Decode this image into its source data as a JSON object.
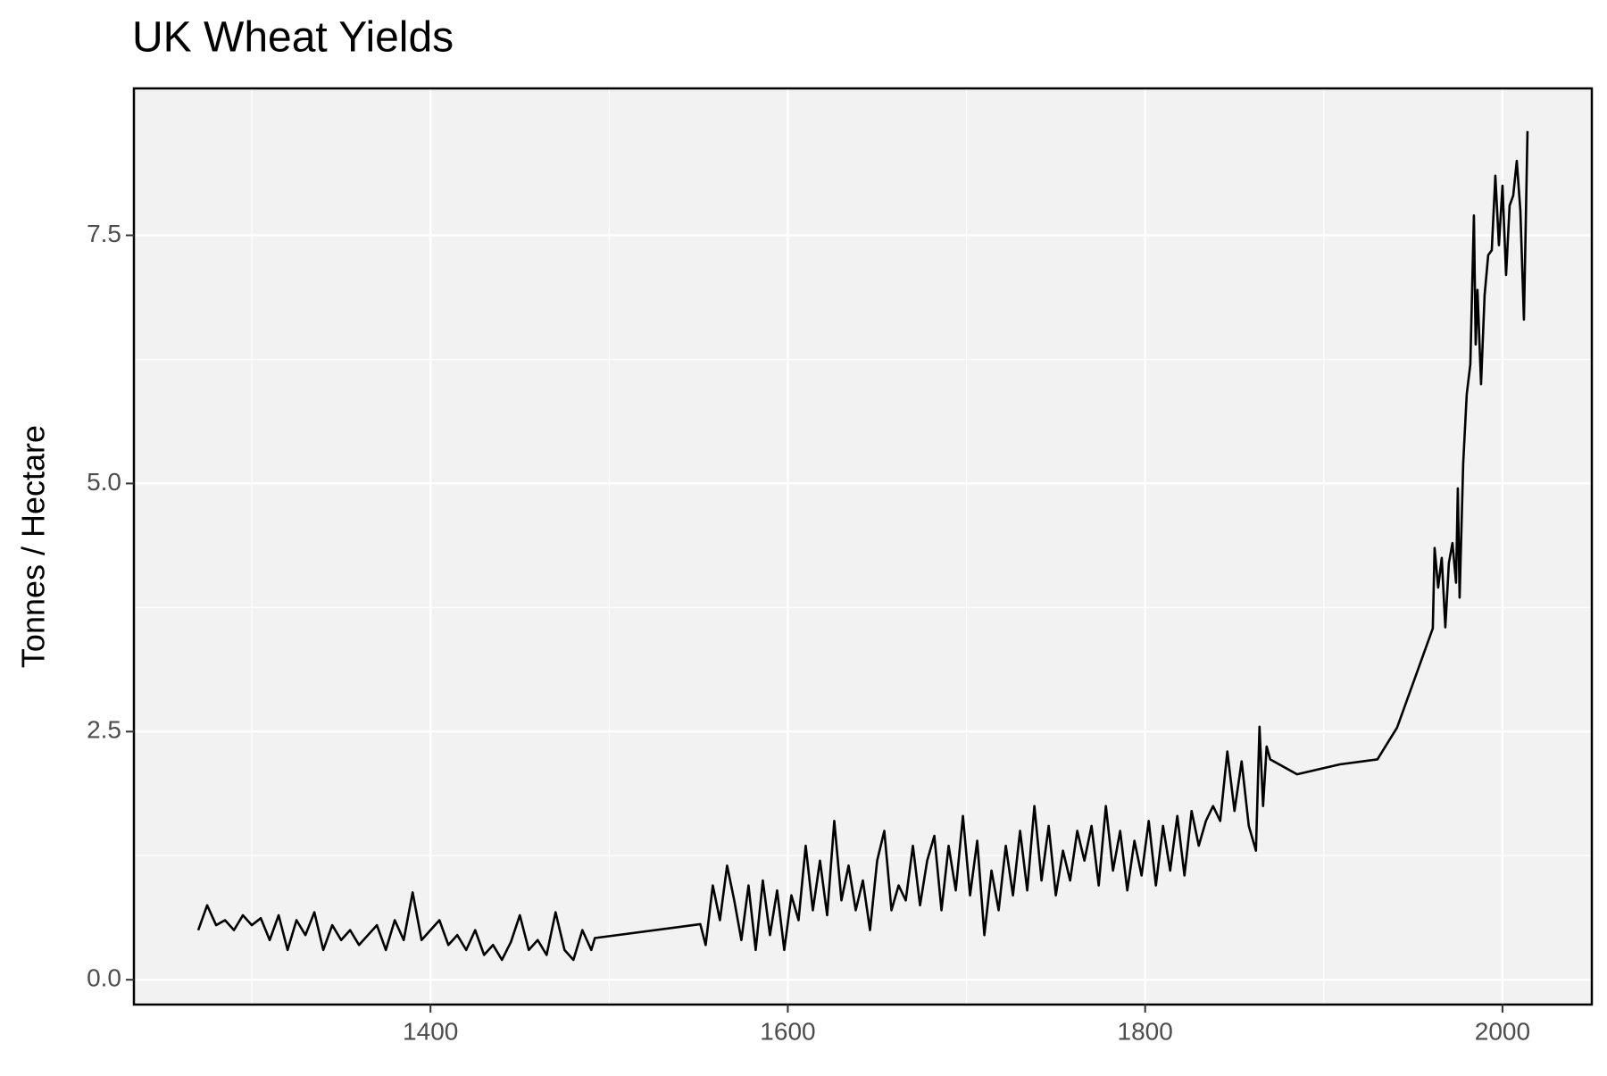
{
  "chart_data": {
    "type": "line",
    "title": "UK Wheat Yields",
    "y_label": "Tonnes / Hectare",
    "x": [
      1270,
      1275,
      1280,
      1285,
      1290,
      1295,
      1300,
      1305,
      1310,
      1315,
      1320,
      1325,
      1330,
      1335,
      1340,
      1345,
      1350,
      1355,
      1360,
      1365,
      1370,
      1375,
      1380,
      1385,
      1390,
      1395,
      1400,
      1405,
      1410,
      1415,
      1420,
      1425,
      1430,
      1435,
      1440,
      1445,
      1450,
      1455,
      1460,
      1465,
      1470,
      1475,
      1480,
      1485,
      1490,
      1492,
      1551,
      1554,
      1558,
      1562,
      1566,
      1570,
      1574,
      1578,
      1582,
      1586,
      1590,
      1594,
      1598,
      1602,
      1606,
      1610,
      1614,
      1618,
      1622,
      1626,
      1630,
      1634,
      1638,
      1642,
      1646,
      1650,
      1654,
      1658,
      1662,
      1666,
      1670,
      1674,
      1678,
      1682,
      1686,
      1690,
      1694,
      1698,
      1702,
      1706,
      1710,
      1714,
      1718,
      1722,
      1726,
      1730,
      1734,
      1738,
      1742,
      1746,
      1750,
      1754,
      1758,
      1762,
      1766,
      1770,
      1774,
      1778,
      1782,
      1786,
      1790,
      1794,
      1798,
      1802,
      1806,
      1810,
      1814,
      1818,
      1822,
      1826,
      1830,
      1834,
      1838,
      1842,
      1846,
      1850,
      1854,
      1858,
      1862,
      1864,
      1866,
      1868,
      1870,
      1885,
      1909,
      1930,
      1941,
      1961,
      1962,
      1964,
      1966,
      1968,
      1970,
      1972,
      1974,
      1975,
      1976,
      1978,
      1980,
      1982,
      1984,
      1985,
      1986,
      1988,
      1990,
      1992,
      1994,
      1996,
      1998,
      2000,
      2002,
      2004,
      2006,
      2008,
      2010,
      2012,
      2014
    ],
    "values": [
      0.5,
      0.75,
      0.55,
      0.6,
      0.5,
      0.65,
      0.55,
      0.62,
      0.4,
      0.65,
      0.3,
      0.6,
      0.45,
      0.68,
      0.3,
      0.55,
      0.4,
      0.5,
      0.35,
      0.45,
      0.55,
      0.3,
      0.6,
      0.4,
      0.88,
      0.4,
      0.5,
      0.6,
      0.35,
      0.45,
      0.3,
      0.5,
      0.25,
      0.35,
      0.2,
      0.38,
      0.65,
      0.3,
      0.4,
      0.25,
      0.68,
      0.3,
      0.2,
      0.5,
      0.3,
      0.42,
      0.56,
      0.35,
      0.95,
      0.6,
      1.15,
      0.8,
      0.4,
      0.95,
      0.3,
      1.0,
      0.45,
      0.9,
      0.3,
      0.85,
      0.6,
      1.35,
      0.7,
      1.2,
      0.65,
      1.6,
      0.8,
      1.15,
      0.7,
      1.0,
      0.5,
      1.2,
      1.5,
      0.7,
      0.95,
      0.8,
      1.35,
      0.75,
      1.2,
      1.45,
      0.7,
      1.35,
      0.9,
      1.65,
      0.85,
      1.4,
      0.45,
      1.1,
      0.7,
      1.35,
      0.85,
      1.5,
      0.9,
      1.75,
      1.0,
      1.55,
      0.85,
      1.3,
      1.0,
      1.5,
      1.2,
      1.55,
      0.95,
      1.75,
      1.1,
      1.5,
      0.9,
      1.4,
      1.05,
      1.6,
      0.95,
      1.55,
      1.1,
      1.65,
      1.05,
      1.7,
      1.35,
      1.6,
      1.75,
      1.6,
      2.3,
      1.7,
      2.2,
      1.55,
      1.3,
      2.55,
      1.75,
      2.35,
      2.22,
      2.07,
      2.17,
      2.22,
      2.54,
      3.54,
      4.35,
      3.95,
      4.25,
      3.55,
      4.2,
      4.4,
      4.0,
      4.95,
      3.85,
      5.2,
      5.9,
      6.2,
      7.7,
      6.4,
      6.95,
      6.0,
      6.9,
      7.3,
      7.35,
      8.1,
      7.4,
      8.0,
      7.1,
      7.8,
      7.9,
      8.25,
      7.75,
      6.65,
      8.55
    ],
    "color": "#000000",
    "xlim": [
      1234,
      2050
    ],
    "xticks": [
      1400,
      1600,
      1800,
      2000
    ],
    "xminor": [
      1300,
      1500,
      1700,
      1900
    ],
    "ylim": [
      -0.25,
      8.98
    ],
    "yticks": [
      {
        "value": 0,
        "label": "0.0"
      },
      2.5,
      {
        "value": 5,
        "label": "5.0"
      },
      7.5
    ],
    "yminor": [
      1.25,
      3.75,
      6.25
    ],
    "grid": true
  }
}
